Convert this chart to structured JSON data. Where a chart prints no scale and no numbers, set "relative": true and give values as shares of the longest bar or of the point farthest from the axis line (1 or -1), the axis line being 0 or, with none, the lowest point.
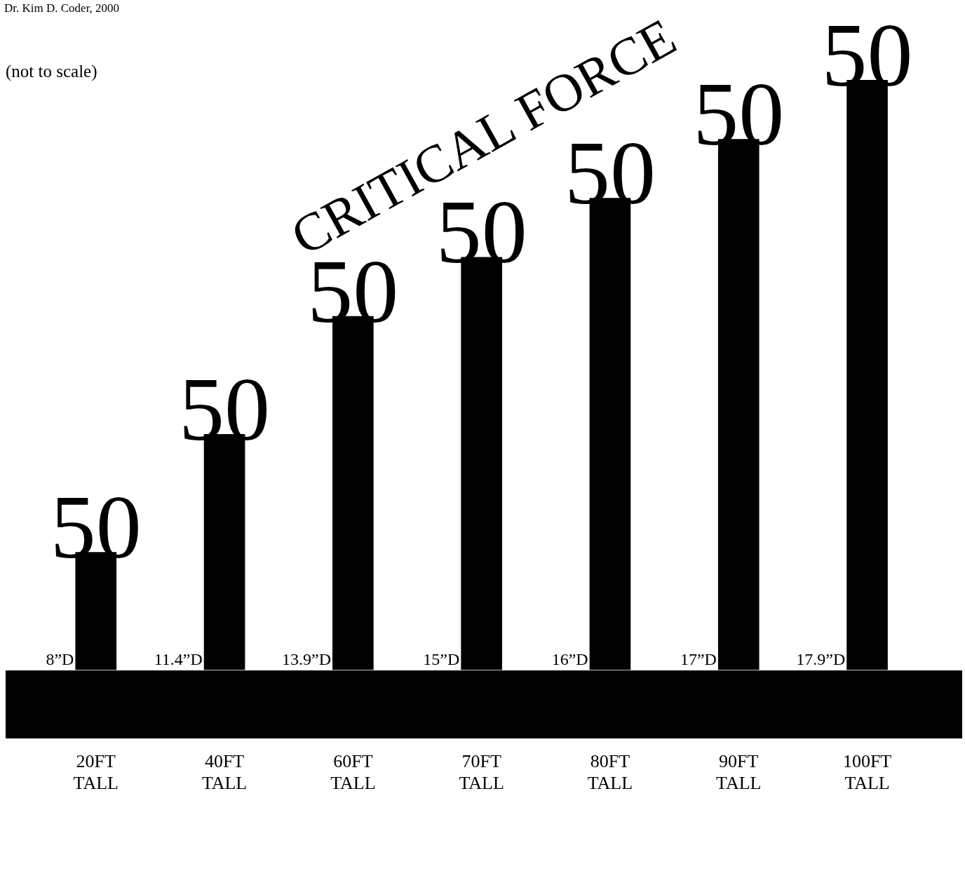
{
  "chart_data": {
    "type": "bar",
    "title": "CRITICAL FORCE",
    "relative": true,
    "color": "#000000",
    "categories": [
      "20FT TALL",
      "40FT TALL",
      "60FT TALL",
      "70FT TALL",
      "80FT TALL",
      "90FT TALL",
      "100FT TALL"
    ],
    "values": [
      0.2,
      0.4,
      0.6,
      0.7,
      0.8,
      0.9,
      1.0
    ],
    "grid": false,
    "legend": false,
    "annotations": [
      "Dr. Kim D. Coder, 2000",
      "(not to scale)",
      "8”D",
      "11.4”D",
      "13.9”D",
      "15”D",
      "16”D",
      "17”D",
      "17.9”D",
      {
        "text": "50",
        "x": "20FT TALL",
        "y": 0.2
      },
      {
        "text": "50",
        "x": "40FT TALL",
        "y": 0.4
      },
      {
        "text": "50",
        "x": "60FT TALL",
        "y": 0.6
      },
      {
        "text": "50",
        "x": "70FT TALL",
        "y": 0.7
      },
      {
        "text": "50",
        "x": "80FT TALL",
        "y": 0.8
      },
      {
        "text": "50",
        "x": "90FT TALL",
        "y": 0.9
      },
      {
        "text": "50",
        "x": "100FT TALL",
        "y": 1.0
      }
    ]
  }
}
